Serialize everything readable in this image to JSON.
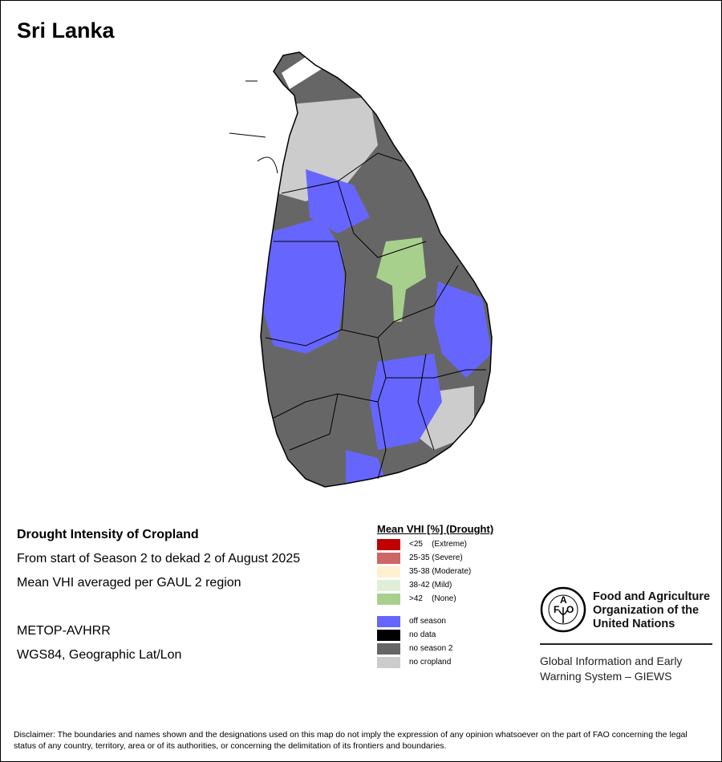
{
  "title": "Sri Lanka",
  "info": {
    "heading": "Drought Intensity of Cropland",
    "line1": "From start of Season 2 to dekad 2 of August 2025",
    "line2": "Mean VHI averaged per GAUL 2 region",
    "sensor": "METOP-AVHRR",
    "projection": "WGS84, Geographic Lat/Lon"
  },
  "legend": {
    "title": "Mean VHI [%] (Drought)",
    "classes": [
      {
        "label": "<25    (Extreme)",
        "color": "#c00000"
      },
      {
        "label": "25-35 (Severe)",
        "color": "#cd6666"
      },
      {
        "label": "35-38 (Moderate)",
        "color": "#fff0d0"
      },
      {
        "label": "38-42 (Mild)",
        "color": "#e0eed8"
      },
      {
        "label": ">42    (None)",
        "color": "#a8d08d"
      }
    ],
    "other": [
      {
        "label": "off season",
        "color": "#6666ff"
      },
      {
        "label": "no data",
        "color": "#000000"
      },
      {
        "label": "no season 2",
        "color": "#666666"
      },
      {
        "label": "no cropland",
        "color": "#cccccc"
      }
    ]
  },
  "org": {
    "logo_text": "FAO FIAT PANIS",
    "name_line1": "Food and Agriculture",
    "name_line2": "Organization of the",
    "name_line3": "United Nations",
    "giews_line1": "Global Information and Early",
    "giews_line2": "Warning System – GIEWS"
  },
  "disclaimer": "Disclaimer: The boundaries and names shown and the designations used on this map do not imply the expression of any opinion whatsoever on the part of FAO concerning the legal status of any country, territory, area or of its authorities, or concerning the delimitation of its frontiers and boundaries."
}
